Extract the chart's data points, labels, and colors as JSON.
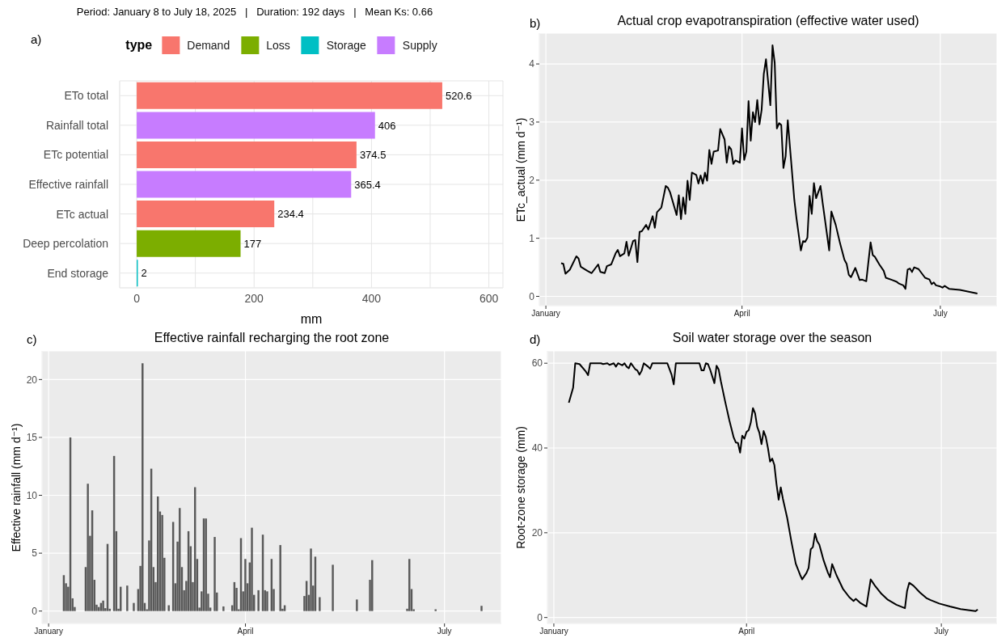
{
  "chart_data": [
    {
      "type": "bar",
      "orientation": "horizontal",
      "stacked": true,
      "title": "Period: January 8 to July 18, 2025   |   Duration: 192 days   |   Mean Ks: 0.66",
      "annotations": [
        "a)"
      ],
      "legend_title": "type",
      "legend": "top",
      "xlabel": "mm",
      "categories": [
        "ETo total",
        "Rainfall total",
        "ETc potential",
        "Effective rainfall",
        "ETc actual",
        "Deep percolation",
        "End storage"
      ],
      "series": [
        {
          "name": "Demand",
          "color": "#f8766d",
          "values": [
            520.6,
            null,
            374.5,
            null,
            234.4,
            null,
            null
          ]
        },
        {
          "name": "Loss",
          "color": "#7cae00",
          "values": [
            null,
            null,
            null,
            null,
            null,
            177,
            null
          ]
        },
        {
          "name": "Storage",
          "color": "#00bfc4",
          "values": [
            null,
            null,
            null,
            null,
            null,
            null,
            2
          ]
        },
        {
          "name": "Supply",
          "color": "#c77cff",
          "values": [
            null,
            406,
            null,
            365.4,
            null,
            null,
            null
          ]
        }
      ],
      "xlim": [
        -29,
        624
      ],
      "xticks": [
        0,
        {
          "value": 100,
          "label": null
        },
        200,
        {
          "value": 300,
          "label": null
        },
        400,
        {
          "value": 500,
          "label": null
        },
        600
      ],
      "grid": true,
      "data_labels": true
    },
    {
      "type": "line",
      "title": "Actual crop evapotranspiration (effective water used)",
      "annotations": [
        "b)"
      ],
      "ylabel": "ETc_actual (mm d⁻¹)",
      "color": "#000000",
      "x": [
        "2025-01-08",
        "2025-01-09",
        "2025-01-10",
        "2025-01-12",
        "2025-01-15",
        "2025-01-16",
        "2025-01-17",
        "2025-01-20",
        "2025-01-22",
        "2025-01-25",
        "2025-01-26",
        "2025-01-28",
        "2025-01-29",
        "2025-01-31",
        "2025-02-02",
        "2025-02-03",
        "2025-02-04",
        "2025-02-06",
        "2025-02-07",
        "2025-02-08",
        "2025-02-10",
        "2025-02-11",
        "2025-02-12",
        "2025-02-13",
        "2025-02-14",
        "2025-02-16",
        "2025-02-17",
        "2025-02-19",
        "2025-02-20",
        "2025-02-21",
        "2025-02-23",
        "2025-02-25",
        "2025-02-26",
        "2025-02-27",
        "2025-03-02",
        "2025-03-03",
        "2025-03-04",
        "2025-03-05",
        "2025-03-06",
        "2025-03-07",
        "2025-03-08",
        "2025-03-09",
        "2025-03-11",
        "2025-03-12",
        "2025-03-13",
        "2025-03-14",
        "2025-03-15",
        "2025-03-16",
        "2025-03-17",
        "2025-03-18",
        "2025-03-19",
        "2025-03-21",
        "2025-03-22",
        "2025-03-24",
        "2025-03-25",
        "2025-03-26",
        "2025-03-27",
        "2025-03-28",
        "2025-03-29",
        "2025-03-31",
        "2025-04-01",
        "2025-04-02",
        "2025-04-03",
        "2025-04-04",
        "2025-04-05",
        "2025-04-06",
        "2025-04-07",
        "2025-04-08",
        "2025-04-09",
        "2025-04-10",
        "2025-04-11",
        "2025-04-12",
        "2025-04-14",
        "2025-04-15",
        "2025-04-16",
        "2025-04-17",
        "2025-04-18",
        "2025-04-19",
        "2025-04-20",
        "2025-04-21",
        "2025-04-22",
        "2025-04-23",
        "2025-04-25",
        "2025-04-26",
        "2025-04-28",
        "2025-04-29",
        "2025-04-30",
        "2025-05-01",
        "2025-05-02",
        "2025-05-03",
        "2025-05-04",
        "2025-05-05",
        "2025-05-07",
        "2025-05-08",
        "2025-05-11",
        "2025-05-12",
        "2025-05-14",
        "2025-05-16",
        "2025-05-18",
        "2025-05-19",
        "2025-05-20",
        "2025-05-21",
        "2025-05-23",
        "2025-05-25",
        "2025-05-26",
        "2025-05-28",
        "2025-05-30",
        "2025-05-31",
        "2025-06-01",
        "2025-06-03",
        "2025-06-05",
        "2025-06-06",
        "2025-06-09",
        "2025-06-11",
        "2025-06-12",
        "2025-06-14",
        "2025-06-15",
        "2025-06-16",
        "2025-06-17",
        "2025-06-18",
        "2025-06-19",
        "2025-06-21",
        "2025-06-24",
        "2025-06-26",
        "2025-06-27",
        "2025-06-28",
        "2025-06-29",
        "2025-07-01",
        "2025-07-02",
        "2025-07-03",
        "2025-07-05",
        "2025-07-10",
        "2025-07-18"
      ],
      "values": [
        0.57,
        0.56,
        0.39,
        0.46,
        0.69,
        0.65,
        0.51,
        0.44,
        0.4,
        0.55,
        0.42,
        0.4,
        0.52,
        0.55,
        0.74,
        0.8,
        0.69,
        0.74,
        0.94,
        0.7,
        0.95,
        0.97,
        0.59,
        1.11,
        1.12,
        1.23,
        1.15,
        1.38,
        1.18,
        1.45,
        1.53,
        1.9,
        1.87,
        1.79,
        1.4,
        1.74,
        1.33,
        1.7,
        1.42,
        1.99,
        1.66,
        2.13,
        2.09,
        1.94,
        2.08,
        1.94,
        2.13,
        1.99,
        2.52,
        2.28,
        2.49,
        2.51,
        2.88,
        2.7,
        2.3,
        2.58,
        2.53,
        2.28,
        2.34,
        2.3,
        2.89,
        2.35,
        2.49,
        3.36,
        2.68,
        3.17,
        3.0,
        3.38,
        2.96,
        3.21,
        3.83,
        4.08,
        3.29,
        4.32,
        4.02,
        2.89,
        2.98,
        2.95,
        2.21,
        2.41,
        3.03,
        2.57,
        1.66,
        1.34,
        0.79,
        0.95,
        0.94,
        1.01,
        1.73,
        1.42,
        1.95,
        1.69,
        1.9,
        1.61,
        0.79,
        1.46,
        1.23,
        0.91,
        0.63,
        0.56,
        0.37,
        0.33,
        0.49,
        0.28,
        0.29,
        0.26,
        0.93,
        0.71,
        0.68,
        0.55,
        0.44,
        0.32,
        0.28,
        0.25,
        0.22,
        0.19,
        0.13,
        0.46,
        0.48,
        0.42,
        0.5,
        0.47,
        0.32,
        0.29,
        0.21,
        0.24,
        0.19,
        0.17,
        0.15,
        0.18,
        0.13,
        0.11,
        0.05
      ],
      "xlim": [
        "2024-12-29",
        "2025-07-27"
      ],
      "xticks": [
        {
          "value": "2025-01-01",
          "label": "January"
        },
        {
          "value": "2025-04-01",
          "label": "April"
        },
        {
          "value": "2025-07-01",
          "label": "July"
        }
      ],
      "ylim": [
        -0.16,
        4.53
      ],
      "yticks": [
        0,
        1,
        2,
        3,
        4
      ],
      "grid": true
    },
    {
      "type": "bar",
      "title": "Effective rainfall recharging the root zone",
      "annotations": [
        "c)"
      ],
      "ylabel": "Effective rainfall (mm d⁻¹)",
      "color": "#595959",
      "x": [
        "2025-01-08",
        "2025-01-09",
        "2025-01-10",
        "2025-01-11",
        "2025-01-12",
        "2025-01-13",
        "2025-01-18",
        "2025-01-19",
        "2025-01-20",
        "2025-01-21",
        "2025-01-22",
        "2025-01-23",
        "2025-01-24",
        "2025-01-25",
        "2025-01-26",
        "2025-01-27",
        "2025-01-28",
        "2025-01-29",
        "2025-01-31",
        "2025-02-01",
        "2025-02-02",
        "2025-02-03",
        "2025-02-06",
        "2025-02-09",
        "2025-02-11",
        "2025-02-12",
        "2025-02-13",
        "2025-02-14",
        "2025-02-15",
        "2025-02-16",
        "2025-02-17",
        "2025-02-18",
        "2025-02-19",
        "2025-02-20",
        "2025-02-21",
        "2025-02-22",
        "2025-02-23",
        "2025-02-25",
        "2025-02-27",
        "2025-02-28",
        "2025-03-01",
        "2025-03-02",
        "2025-03-03",
        "2025-03-04",
        "2025-03-05",
        "2025-03-06",
        "2025-03-07",
        "2025-03-08",
        "2025-03-09",
        "2025-03-10",
        "2025-03-11",
        "2025-03-12",
        "2025-03-13",
        "2025-03-14",
        "2025-03-15",
        "2025-03-16",
        "2025-03-18",
        "2025-03-19",
        "2025-03-22",
        "2025-03-26",
        "2025-03-27",
        "2025-03-28",
        "2025-03-29",
        "2025-03-30",
        "2025-03-31",
        "2025-04-01",
        "2025-04-02",
        "2025-04-03",
        "2025-04-04",
        "2025-04-05",
        "2025-04-07",
        "2025-04-09",
        "2025-04-10",
        "2025-04-11",
        "2025-04-13",
        "2025-04-14",
        "2025-04-17",
        "2025-04-18",
        "2025-04-19",
        "2025-04-28",
        "2025-04-29",
        "2025-04-30",
        "2025-05-01",
        "2025-05-02",
        "2025-05-03",
        "2025-05-05",
        "2025-05-11",
        "2025-05-22",
        "2025-05-28",
        "2025-05-29",
        "2025-06-14",
        "2025-06-15",
        "2025-06-16",
        "2025-06-17",
        "2025-06-27",
        "2025-07-18"
      ],
      "values": [
        3.1,
        2.4,
        2.1,
        15,
        1.1,
        0.35,
        3.8,
        11,
        6.5,
        8.7,
        2.7,
        0.55,
        0.35,
        0.7,
        0.9,
        0.25,
        5.8,
        0.2,
        13.4,
        6.9,
        0.2,
        2.1,
        2.2,
        0.7,
        1.9,
        3.9,
        21.4,
        0.7,
        0.15,
        6.1,
        12.3,
        3.8,
        2.5,
        9.9,
        8.6,
        8.3,
        4.6,
        0.5,
        7.7,
        2.4,
        6,
        8.9,
        3.8,
        1.8,
        2.6,
        6.9,
        5.6,
        2.5,
        10.7,
        4.5,
        0.3,
        1.7,
        8,
        8,
        1.5,
        0.3,
        6.4,
        1.6,
        0.4,
        0.5,
        2.5,
        2,
        0.15,
        6.3,
        1.7,
        4.5,
        2.4,
        4.2,
        7.2,
        1.4,
        1.8,
        6.6,
        1.8,
        1.7,
        4.5,
        1.9,
        5.7,
        0.2,
        0.5,
        1.3,
        2.6,
        1.4,
        5.4,
        2.2,
        4.7,
        1.2,
        4,
        1,
        2.7,
        4.4,
        0.2,
        4.5,
        1.9,
        0.15,
        0.15,
        0.45
      ],
      "xlim": [
        "2024-12-29",
        "2025-07-27"
      ],
      "xticks": [
        {
          "value": "2025-01-01",
          "label": "January"
        },
        {
          "value": "2025-04-01",
          "label": "April"
        },
        {
          "value": "2025-07-01",
          "label": "July"
        }
      ],
      "ylim": [
        -1.07,
        22.47
      ],
      "yticks": [
        0,
        5,
        10,
        15,
        20
      ],
      "grid": true
    },
    {
      "type": "line",
      "title": "Soil water storage over the season",
      "annotations": [
        "d)"
      ],
      "ylabel": "Root-zone storage (mm)",
      "color": "#000000",
      "x": [
        "2025-01-08",
        "2025-01-10",
        "2025-01-11",
        "2025-01-13",
        "2025-01-16",
        "2025-01-17",
        "2025-01-18",
        "2025-01-23",
        "2025-01-24",
        "2025-01-26",
        "2025-01-27",
        "2025-01-29",
        "2025-01-30",
        "2025-01-31",
        "2025-02-02",
        "2025-02-03",
        "2025-02-04",
        "2025-02-05",
        "2025-02-06",
        "2025-02-08",
        "2025-02-09",
        "2025-02-10",
        "2025-02-11",
        "2025-02-12",
        "2025-02-14",
        "2025-02-15",
        "2025-02-16",
        "2025-02-23",
        "2025-02-25",
        "2025-02-26",
        "2025-02-27",
        "2025-03-10",
        "2025-03-11",
        "2025-03-12",
        "2025-03-13",
        "2025-03-14",
        "2025-03-15",
        "2025-03-17",
        "2025-03-18",
        "2025-03-19",
        "2025-03-20",
        "2025-03-22",
        "2025-03-24",
        "2025-03-26",
        "2025-03-27",
        "2025-03-28",
        "2025-03-29",
        "2025-03-30",
        "2025-03-31",
        "2025-04-01",
        "2025-04-02",
        "2025-04-03",
        "2025-04-04",
        "2025-04-05",
        "2025-04-06",
        "2025-04-07",
        "2025-04-08",
        "2025-04-09",
        "2025-04-10",
        "2025-04-11",
        "2025-04-12",
        "2025-04-13",
        "2025-04-14",
        "2025-04-15",
        "2025-04-16",
        "2025-04-17",
        "2025-04-18",
        "2025-04-20",
        "2025-04-22",
        "2025-04-24",
        "2025-04-26",
        "2025-04-27",
        "2025-04-29",
        "2025-04-30",
        "2025-05-01",
        "2025-05-02",
        "2025-05-03",
        "2025-05-04",
        "2025-05-05",
        "2025-05-07",
        "2025-05-09",
        "2025-05-10",
        "2025-05-11",
        "2025-05-13",
        "2025-05-16",
        "2025-05-19",
        "2025-05-21",
        "2025-05-22",
        "2025-05-24",
        "2025-05-27",
        "2025-05-29",
        "2025-05-31",
        "2025-06-03",
        "2025-06-06",
        "2025-06-10",
        "2025-06-14",
        "2025-06-15",
        "2025-06-16",
        "2025-06-18",
        "2025-06-21",
        "2025-06-24",
        "2025-06-26",
        "2025-06-30",
        "2025-07-05",
        "2025-07-10",
        "2025-07-17",
        "2025-07-18"
      ],
      "values": [
        50.7,
        54.2,
        60,
        59.8,
        58,
        57.2,
        60,
        60,
        59.8,
        60,
        59.6,
        60,
        59.2,
        60,
        59.5,
        60,
        59.2,
        58.8,
        60,
        58.6,
        58.3,
        57.3,
        58.2,
        60,
        59.2,
        58.7,
        60,
        60,
        57.3,
        55,
        60,
        60,
        58.3,
        58.3,
        60,
        59.8,
        58.5,
        55.3,
        59.4,
        58.5,
        55.8,
        51,
        46.5,
        42.5,
        41.3,
        41.2,
        38.9,
        42.9,
        42.2,
        43.8,
        44.2,
        46,
        49.4,
        48.2,
        45,
        43.6,
        40.9,
        44,
        42.6,
        40,
        36.8,
        37.5,
        36,
        31.5,
        27.8,
        30.7,
        28,
        23.5,
        17.8,
        12.7,
        10.1,
        9,
        10.5,
        11.7,
        16.1,
        16.6,
        19.8,
        18,
        17.2,
        13.5,
        10.6,
        9.5,
        12.6,
        10,
        6.8,
        4.8,
        3.9,
        4.4,
        3.5,
        2.6,
        9,
        7.5,
        5.6,
        4.2,
        3,
        2.2,
        6.3,
        8.2,
        7.5,
        5.9,
        4.6,
        4.1,
        3.3,
        2.6,
        2,
        1.5,
        1.9
      ],
      "xlim": [
        "2024-12-29",
        "2025-07-27"
      ],
      "xticks": [
        {
          "value": "2025-01-01",
          "label": "January"
        },
        {
          "value": "2025-04-01",
          "label": "April"
        },
        {
          "value": "2025-07-01",
          "label": "July"
        }
      ],
      "ylim": [
        -1.4,
        62.9
      ],
      "yticks": [
        0,
        20,
        40,
        60
      ],
      "grid": true
    }
  ]
}
